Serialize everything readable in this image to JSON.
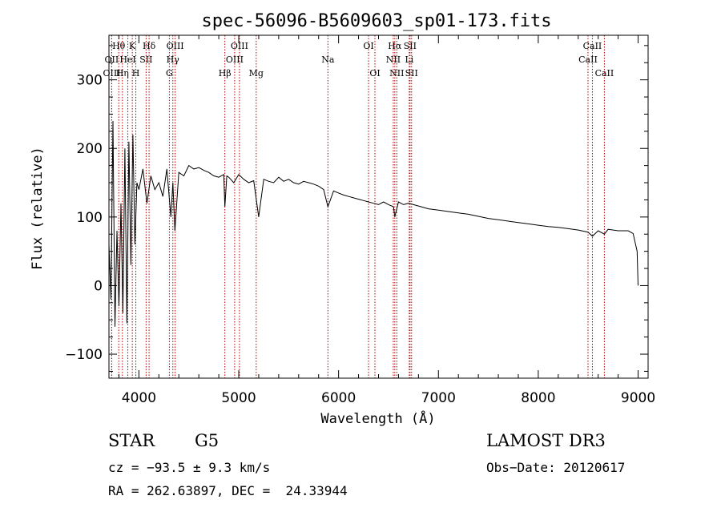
{
  "chart_data": {
    "type": "line",
    "title": "spec-56096-B5609603_sp01-173.fits",
    "xlabel": "Wavelength (Å)",
    "ylabel": "Flux (relative)",
    "xlim": [
      3700,
      9100
    ],
    "ylim": [
      -135,
      365
    ],
    "xticks": [
      4000,
      5000,
      6000,
      7000,
      8000,
      9000
    ],
    "yticks": [
      -100,
      0,
      100,
      200,
      300
    ],
    "grid": false,
    "series": [
      {
        "name": "flux",
        "x": [
          3700,
          3720,
          3740,
          3760,
          3780,
          3800,
          3820,
          3840,
          3860,
          3880,
          3900,
          3920,
          3940,
          3960,
          3980,
          4000,
          4040,
          4080,
          4120,
          4160,
          4200,
          4240,
          4280,
          4320,
          4340,
          4360,
          4400,
          4450,
          4500,
          4550,
          4600,
          4650,
          4700,
          4750,
          4800,
          4850,
          4861,
          4880,
          4900,
          4950,
          5000,
          5050,
          5100,
          5150,
          5200,
          5250,
          5300,
          5350,
          5400,
          5450,
          5500,
          5550,
          5600,
          5650,
          5700,
          5750,
          5800,
          5850,
          5893,
          5950,
          6000,
          6050,
          6100,
          6150,
          6200,
          6250,
          6300,
          6350,
          6400,
          6450,
          6500,
          6550,
          6563,
          6600,
          6650,
          6700,
          6750,
          6800,
          6900,
          7000,
          7100,
          7200,
          7300,
          7400,
          7500,
          7600,
          7700,
          7800,
          7900,
          8000,
          8100,
          8200,
          8300,
          8400,
          8498,
          8542,
          8600,
          8662,
          8700,
          8800,
          8900,
          8950,
          8990,
          9000
        ],
        "values": [
          60,
          -20,
          240,
          -60,
          80,
          -30,
          120,
          -40,
          200,
          -55,
          210,
          30,
          220,
          60,
          150,
          140,
          170,
          120,
          160,
          140,
          150,
          130,
          170,
          100,
          150,
          80,
          165,
          160,
          175,
          170,
          172,
          168,
          165,
          160,
          158,
          162,
          115,
          160,
          158,
          150,
          162,
          155,
          150,
          153,
          100,
          155,
          152,
          150,
          158,
          152,
          155,
          150,
          148,
          152,
          150,
          148,
          145,
          140,
          115,
          138,
          135,
          132,
          130,
          128,
          126,
          124,
          122,
          120,
          118,
          122,
          118,
          115,
          100,
          122,
          118,
          120,
          118,
          116,
          112,
          110,
          108,
          106,
          104,
          101,
          98,
          96,
          94,
          92,
          90,
          88,
          86,
          85,
          83,
          81,
          78,
          72,
          80,
          75,
          82,
          80,
          80,
          76,
          50,
          0
        ]
      }
    ],
    "lines": [
      {
        "name": "Hθ",
        "x": 3798,
        "row": 1
      },
      {
        "name": "OII",
        "x": 3727,
        "row": 2
      },
      {
        "name": "OIII",
        "x": 3728,
        "row": 3
      },
      {
        "name": "K",
        "x": 3934,
        "row": 1
      },
      {
        "name": "HeI",
        "x": 3889,
        "row": 2
      },
      {
        "name": "Hη",
        "x": 3835,
        "row": 3
      },
      {
        "name": "Hδ",
        "x": 4102,
        "row": 1
      },
      {
        "name": "SII",
        "x": 4072,
        "row": 2
      },
      {
        "name": "H",
        "x": 3969,
        "row": 3
      },
      {
        "name": "OIII",
        "x": 4363,
        "row": 1
      },
      {
        "name": "Hγ",
        "x": 4340,
        "row": 2
      },
      {
        "name": "G",
        "x": 4305,
        "row": 3
      },
      {
        "name": "OIII",
        "x": 5007,
        "row": 1
      },
      {
        "name": "OIII",
        "x": 4959,
        "row": 2
      },
      {
        "name": "Hβ",
        "x": 4861,
        "row": 3
      },
      {
        "name": "Mg",
        "x": 5175,
        "row": 3
      },
      {
        "name": "Na",
        "x": 5893,
        "row": 2
      },
      {
        "name": "OI",
        "x": 6300,
        "row": 1
      },
      {
        "name": "OI",
        "x": 6364,
        "row": 3
      },
      {
        "name": "Hα",
        "x": 6563,
        "row": 1
      },
      {
        "name": "SII",
        "x": 6716,
        "row": 1
      },
      {
        "name": "NII",
        "x": 6548,
        "row": 2
      },
      {
        "name": "Li",
        "x": 6708,
        "row": 2
      },
      {
        "name": "NII",
        "x": 6583,
        "row": 3
      },
      {
        "name": "SII",
        "x": 6731,
        "row": 3
      },
      {
        "name": "CaII",
        "x": 8542,
        "row": 1
      },
      {
        "name": "CaII",
        "x": 8498,
        "row": 2
      },
      {
        "name": "CaII",
        "x": 8662,
        "row": 3
      }
    ]
  },
  "footer": {
    "object_class": "STAR",
    "subclass": "G5",
    "survey": "LAMOST DR3",
    "cz": "cz = −93.5 ± 9.3 km/s",
    "obs_date": "Obs−Date: 20120617",
    "coords": "RA = 262.63897, DEC =  24.33944"
  }
}
